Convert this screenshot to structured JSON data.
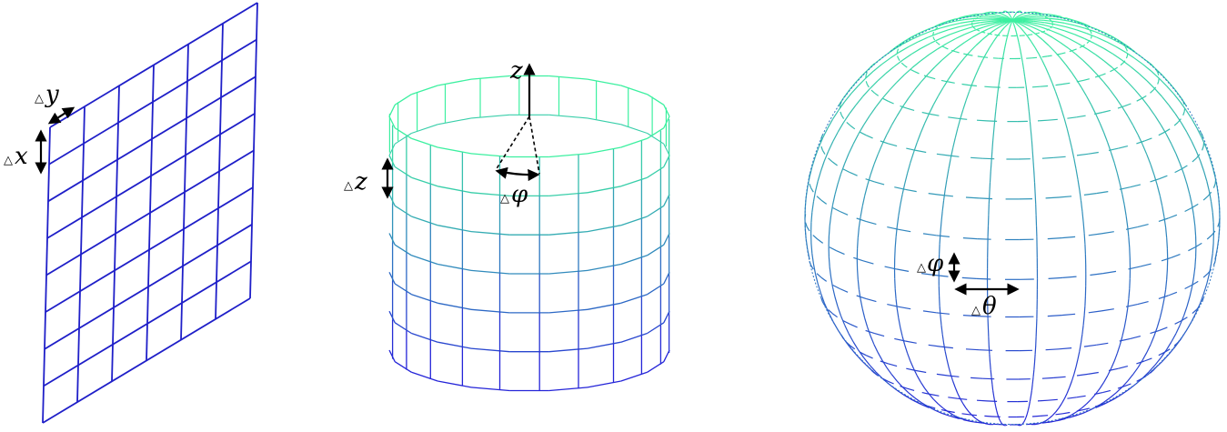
{
  "colors": {
    "plane": "#1f1fc8",
    "bottom": "#2424d8",
    "top": "#3cf0a0",
    "arrow": "#000000"
  },
  "plane_panel": {
    "dx_label": {
      "symbol": "△",
      "var": "x"
    },
    "dy_label": {
      "symbol": "△",
      "var": "y"
    }
  },
  "cylinder_panel": {
    "axis_label": "z",
    "dz_label": {
      "symbol": "△",
      "var": "z"
    },
    "dphi_label": {
      "symbol": "△",
      "var": "φ"
    }
  },
  "sphere_panel": {
    "dphi_label": {
      "symbol": "△",
      "var": "φ"
    },
    "dtheta_label": {
      "symbol": "△",
      "var": "θ"
    }
  }
}
